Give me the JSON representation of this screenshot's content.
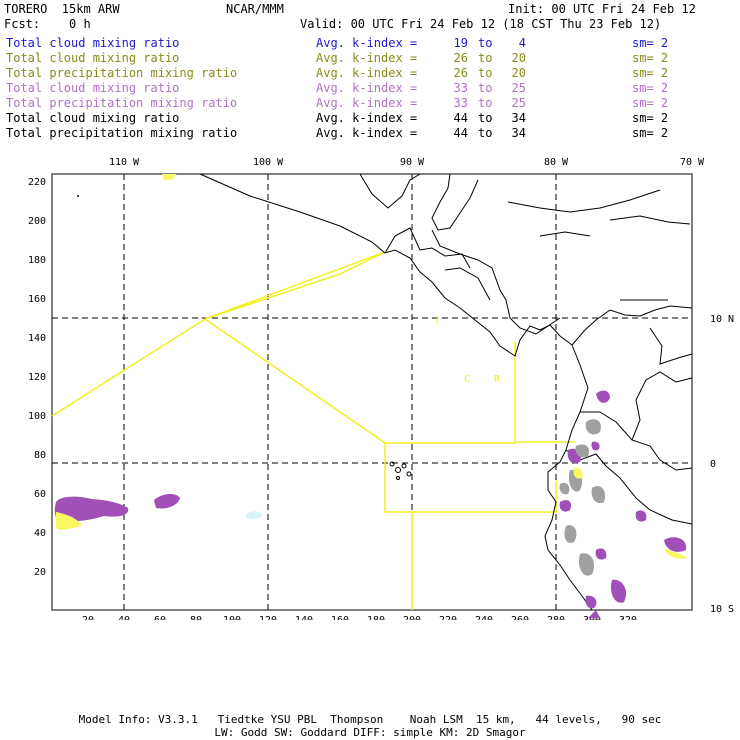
{
  "header": {
    "model": "TORERO  15km ARW",
    "org": "NCAR/MMM",
    "init": "Init: 00 UTC Fri 24 Feb 12",
    "fcst": "Fcst:    0 h",
    "valid": "Valid: 00 UTC Fri 24 Feb 12 (18 CST Thu 23 Feb 12)"
  },
  "legend": [
    {
      "label": "Total cloud mixing ratio",
      "kidx": "Avg. k-index =",
      "v1": "19",
      "to": "to",
      "v2": "4",
      "sm": "sm= 2",
      "color": "#1a1acc"
    },
    {
      "label": "Total cloud mixing ratio",
      "kidx": "Avg. k-index =",
      "v1": "26",
      "to": "to",
      "v2": "20",
      "sm": "sm= 2",
      "color": "#8a8a1c"
    },
    {
      "label": "Total precipitation mixing ratio",
      "kidx": "Avg. k-index =",
      "v1": "26",
      "to": "to",
      "v2": "20",
      "sm": "sm= 2",
      "color": "#8a8a1c"
    },
    {
      "label": "Total cloud mixing ratio",
      "kidx": "Avg. k-index =",
      "v1": "33",
      "to": "to",
      "v2": "25",
      "sm": "sm= 2",
      "color": "#b070c8"
    },
    {
      "label": "Total precipitation mixing ratio",
      "kidx": "Avg. k-index =",
      "v1": "33",
      "to": "to",
      "v2": "25",
      "sm": "sm= 2",
      "color": "#b070c8"
    },
    {
      "label": "Total cloud mixing ratio",
      "kidx": "Avg. k-index =",
      "v1": "44",
      "to": "to",
      "v2": "34",
      "sm": "sm= 2",
      "color": "#000000"
    },
    {
      "label": "Total precipitation mixing ratio",
      "kidx": "Avg. k-index =",
      "v1": "44",
      "to": "to",
      "v2": "34",
      "sm": "sm= 2",
      "color": "#000000"
    }
  ],
  "map": {
    "lon_labels": [
      "110 W",
      "100 W",
      "90 W",
      "80 W",
      "70 W"
    ],
    "lat_labels": [
      "10 N",
      "0",
      "10 S"
    ],
    "y_ticks": [
      "220",
      "200",
      "180",
      "160",
      "140",
      "120",
      "100",
      "80",
      "60",
      "40",
      "20"
    ],
    "x_ticks": [
      "20",
      "40",
      "60",
      "80",
      "100",
      "120",
      "140",
      "160",
      "180",
      "200",
      "220",
      "240",
      "260",
      "280",
      "300",
      "320"
    ],
    "region_labels": [
      "C",
      "R"
    ],
    "colors": {
      "boundary": "#f0f020",
      "cloud_purple": "#a050b8",
      "precip_gray": "#a0a0a0",
      "cloud_cyan": "#d8f4f8",
      "precip_yellow": "#f8f860"
    }
  },
  "footer": {
    "line1": "Model Info: V3.3.1   Tiedtke YSU PBL  Thompson    Noah LSM  15 km,   44 levels,   90 sec",
    "line2": "LW: Godd SW: Goddard DIFF: simple KM: 2D Smagor"
  }
}
